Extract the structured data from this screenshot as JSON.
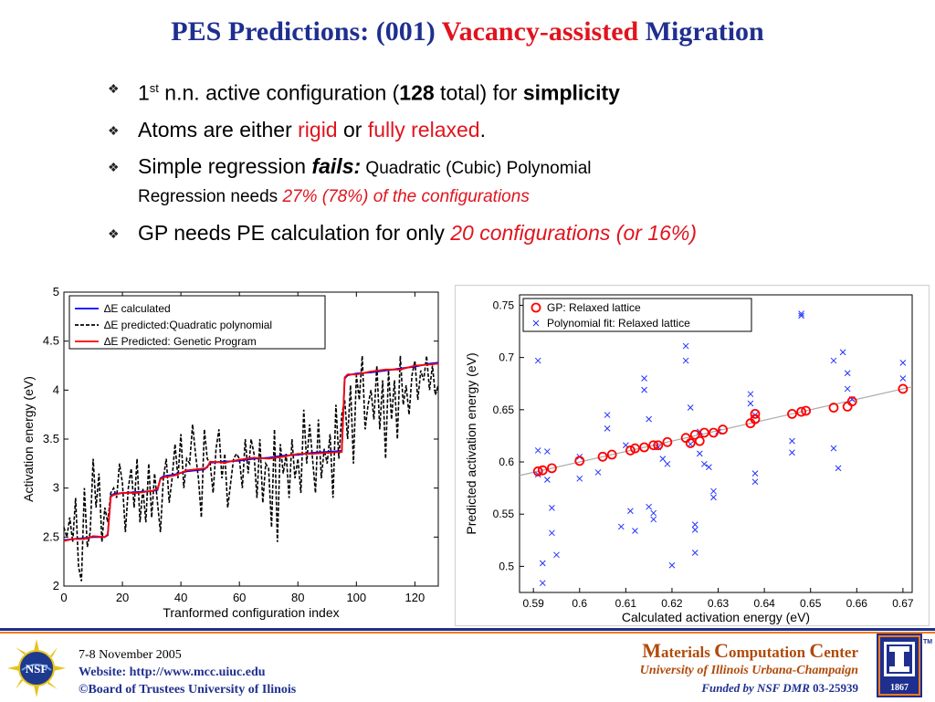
{
  "slide": {
    "title_part1": "PES Predictions: (001) ",
    "title_highlight": "Vacancy-assisted",
    "title_part2": " Migration"
  },
  "bullets": {
    "b1_num": "1",
    "b1_sup": "st",
    "b1_text1": " n.n. active configuration (",
    "b1_count": "128",
    "b1_text2": " total) for ",
    "b1_bold": "simplicity",
    "b2_text1": "Atoms are either ",
    "b2_red1": "rigid",
    "b2_text2": " or ",
    "b2_red2": "fully relaxed",
    "b2_text3": ".",
    "b3_text1": "Simple regression ",
    "b3_fails": "fails:",
    "b3_small1": " Quadratic (Cubic) Polynomial",
    "b3_small2": "Regression needs ",
    "b3_red": "27% (78%) of the configurations",
    "b4_text1": "GP needs PE calculation for only ",
    "b4_red": "20 configurations (or 16%)"
  },
  "footer": {
    "date": "7-8 November 2005",
    "website_label": "Website:  ",
    "website_url": "http://www.mcc.uiuc.edu",
    "copyright": "©Board of Trustees University of Ilinois",
    "center_m": "M",
    "center_aterials": "aterials ",
    "center_c1": "C",
    "center_omputation": "omputation ",
    "center_c2": "C",
    "center_enter": "enter",
    "university": "University of Illinois Urbana-Champaign",
    "funded_prefix": "Funded by NSF DMR ",
    "grant": "03-25939",
    "nsf_text": "NSF",
    "uiuc_year": "1867",
    "tm": "TM"
  },
  "colors": {
    "title_blue": "#1f2f8f",
    "accent_red": "#e0141e",
    "footer_orange": "#f07b1b",
    "footer_brown": "#b04a0a"
  },
  "chart_data": [
    {
      "type": "line",
      "xlabel": "Tranformed configuration index",
      "ylabel": "Activation energy (eV)",
      "xlim": [
        0,
        128
      ],
      "ylim": [
        2,
        5
      ],
      "xticks": [
        0,
        20,
        40,
        60,
        80,
        100,
        120
      ],
      "yticks": [
        2,
        2.5,
        3,
        3.5,
        4,
        4.5,
        5
      ],
      "ytick_labels": [
        "2",
        "2.5",
        "3",
        "3.5",
        "4",
        "4.5",
        "5"
      ],
      "legend_position": "top-left",
      "series": [
        {
          "name": "∆E calculated",
          "color": "#0000ff",
          "x": [
            0,
            3,
            7,
            10,
            14,
            15,
            16,
            17,
            20,
            25,
            30,
            32,
            33,
            34,
            38,
            42,
            48,
            49,
            50,
            55,
            60,
            65,
            70,
            75,
            80,
            85,
            90,
            95,
            96,
            97,
            100,
            105,
            110,
            115,
            120,
            125,
            128
          ],
          "y": [
            2.47,
            2.48,
            2.49,
            2.5,
            2.5,
            2.52,
            2.92,
            2.94,
            2.95,
            2.96,
            2.97,
            2.98,
            3.1,
            3.12,
            3.14,
            3.17,
            3.19,
            3.22,
            3.26,
            3.27,
            3.28,
            3.3,
            3.31,
            3.33,
            3.34,
            3.36,
            3.37,
            3.38,
            4.12,
            4.15,
            4.17,
            4.18,
            4.2,
            4.22,
            4.24,
            4.27,
            4.28
          ]
        },
        {
          "name": "∆E predicted:Quadratic polynomial",
          "color": "#000000",
          "dashed": true,
          "x": [
            0,
            1,
            2,
            3,
            4,
            5,
            6,
            7,
            8,
            9,
            10,
            11,
            12,
            13,
            14,
            15,
            16,
            17,
            18,
            19,
            20,
            21,
            22,
            23,
            24,
            25,
            26,
            27,
            28,
            29,
            30,
            31,
            32,
            33,
            34,
            35,
            36,
            37,
            38,
            39,
            40,
            41,
            42,
            43,
            44,
            45,
            46,
            47,
            48,
            49,
            50,
            51,
            52,
            53,
            54,
            55,
            56,
            57,
            58,
            59,
            60,
            61,
            62,
            63,
            64,
            65,
            66,
            67,
            68,
            69,
            70,
            71,
            72,
            73,
            74,
            75,
            76,
            77,
            78,
            79,
            80,
            81,
            82,
            83,
            84,
            85,
            86,
            87,
            88,
            89,
            90,
            91,
            92,
            93,
            94,
            95,
            96,
            97,
            98,
            99,
            100,
            101,
            102,
            103,
            104,
            105,
            106,
            107,
            108,
            109,
            110,
            111,
            112,
            113,
            114,
            115,
            116,
            117,
            118,
            119,
            120,
            121,
            122,
            123,
            124,
            125,
            126,
            127,
            128
          ],
          "y": [
            2.6,
            2.5,
            2.7,
            2.45,
            2.9,
            2.2,
            2.05,
            3.0,
            2.4,
            2.55,
            3.3,
            2.8,
            3.15,
            2.45,
            2.8,
            2.65,
            2.95,
            3.0,
            2.9,
            3.25,
            3.05,
            2.55,
            3.0,
            3.2,
            2.8,
            3.3,
            2.65,
            3.0,
            2.65,
            3.25,
            2.7,
            3.15,
            2.85,
            2.55,
            3.1,
            3.3,
            2.85,
            3.1,
            3.45,
            3.1,
            3.55,
            3.0,
            3.3,
            3.25,
            3.65,
            3.35,
            3.1,
            2.7,
            3.6,
            3.3,
            3.25,
            2.95,
            3.4,
            3.6,
            3.1,
            3.35,
            2.8,
            3.05,
            3.3,
            3.35,
            3.3,
            3.0,
            3.5,
            3.15,
            3.5,
            3.35,
            2.9,
            3.5,
            2.85,
            3.25,
            3.2,
            2.6,
            3.6,
            2.45,
            3.45,
            3.15,
            3.35,
            2.9,
            3.5,
            3.1,
            3.3,
            2.95,
            3.8,
            3.25,
            3.65,
            3.3,
            2.95,
            3.7,
            3.1,
            3.4,
            3.25,
            3.55,
            2.9,
            3.85,
            3.3,
            3.75,
            3.9,
            3.5,
            4.05,
            3.25,
            4.15,
            3.9,
            4.35,
            3.6,
            3.85,
            4.0,
            3.7,
            4.25,
            3.6,
            4.1,
            3.3,
            4.2,
            3.7,
            4.1,
            3.5,
            4.35,
            3.85,
            4.05,
            3.75,
            4.15,
            4.3,
            3.9,
            4.2,
            4.1,
            4.35,
            4.0,
            4.25,
            3.95,
            4.05
          ]
        },
        {
          "name": "∆E Predicted: Genetic Program",
          "color": "#ff0000",
          "x": [
            0,
            3,
            7,
            10,
            14,
            15,
            16,
            17,
            20,
            25,
            30,
            32,
            33,
            34,
            38,
            42,
            48,
            49,
            50,
            55,
            60,
            65,
            70,
            75,
            80,
            85,
            90,
            95,
            96,
            97,
            100,
            105,
            110,
            115,
            120,
            125,
            128
          ],
          "y": [
            2.46,
            2.48,
            2.48,
            2.51,
            2.5,
            2.53,
            2.91,
            2.93,
            2.95,
            2.95,
            2.97,
            2.99,
            3.09,
            3.11,
            3.13,
            3.18,
            3.2,
            3.21,
            3.27,
            3.26,
            3.29,
            3.31,
            3.3,
            3.32,
            3.35,
            3.35,
            3.36,
            3.37,
            4.13,
            4.16,
            4.16,
            4.19,
            4.21,
            4.21,
            4.25,
            4.26,
            4.27
          ]
        }
      ]
    },
    {
      "type": "scatter",
      "xlabel": "Calculated activation energy (eV)",
      "ylabel": "Predicted activation energy (eV)",
      "xlim": [
        0.587,
        0.672
      ],
      "ylim": [
        0.475,
        0.76
      ],
      "xticks": [
        0.59,
        0.6,
        0.61,
        0.62,
        0.63,
        0.64,
        0.65,
        0.66,
        0.67
      ],
      "xtick_labels": [
        "0.59",
        "0.6",
        "0.61",
        "0.62",
        "0.63",
        "0.64",
        "0.65",
        "0.66",
        "0.67"
      ],
      "yticks": [
        0.5,
        0.55,
        0.6,
        0.65,
        0.7,
        0.75
      ],
      "ytick_labels": [
        "0.5",
        "0.55",
        "0.6",
        "0.65",
        "0.7",
        "0.75"
      ],
      "legend_position": "top-left",
      "series": [
        {
          "name": "GP: Relaxed lattice",
          "color": "#ff0000",
          "marker": "circle",
          "x": [
            0.591,
            0.592,
            0.594,
            0.6,
            0.605,
            0.607,
            0.611,
            0.612,
            0.614,
            0.616,
            0.617,
            0.619,
            0.623,
            0.624,
            0.625,
            0.626,
            0.627,
            0.629,
            0.631,
            0.637,
            0.638,
            0.638,
            0.646,
            0.648,
            0.649,
            0.655,
            0.658,
            0.659,
            0.67
          ],
          "y": [
            0.591,
            0.592,
            0.594,
            0.601,
            0.605,
            0.607,
            0.611,
            0.613,
            0.614,
            0.616,
            0.616,
            0.619,
            0.623,
            0.618,
            0.626,
            0.62,
            0.628,
            0.628,
            0.631,
            0.637,
            0.641,
            0.646,
            0.646,
            0.648,
            0.649,
            0.652,
            0.653,
            0.658,
            0.67
          ]
        },
        {
          "name": "Polynomial fit: Relaxed lattice",
          "color": "#2233ff",
          "marker": "x",
          "x": [
            0.591,
            0.591,
            0.591,
            0.592,
            0.592,
            0.593,
            0.593,
            0.594,
            0.594,
            0.595,
            0.6,
            0.6,
            0.604,
            0.606,
            0.606,
            0.609,
            0.61,
            0.611,
            0.612,
            0.614,
            0.614,
            0.615,
            0.615,
            0.616,
            0.616,
            0.617,
            0.618,
            0.619,
            0.62,
            0.623,
            0.623,
            0.624,
            0.624,
            0.625,
            0.625,
            0.625,
            0.626,
            0.626,
            0.627,
            0.628,
            0.629,
            0.629,
            0.63,
            0.637,
            0.637,
            0.638,
            0.638,
            0.638,
            0.646,
            0.646,
            0.648,
            0.648,
            0.655,
            0.655,
            0.656,
            0.657,
            0.658,
            0.658,
            0.659,
            0.67,
            0.67
          ],
          "y": [
            0.697,
            0.611,
            0.588,
            0.503,
            0.484,
            0.61,
            0.583,
            0.556,
            0.532,
            0.511,
            0.605,
            0.584,
            0.59,
            0.645,
            0.632,
            0.538,
            0.616,
            0.553,
            0.534,
            0.68,
            0.669,
            0.641,
            0.557,
            0.551,
            0.545,
            0.614,
            0.603,
            0.598,
            0.501,
            0.711,
            0.697,
            0.652,
            0.617,
            0.54,
            0.535,
            0.513,
            0.629,
            0.608,
            0.598,
            0.595,
            0.572,
            0.566,
            0.629,
            0.665,
            0.656,
            0.645,
            0.589,
            0.581,
            0.62,
            0.609,
            0.742,
            0.74,
            0.697,
            0.613,
            0.594,
            0.705,
            0.685,
            0.67,
            0.66,
            0.695,
            0.68
          ]
        }
      ]
    }
  ]
}
